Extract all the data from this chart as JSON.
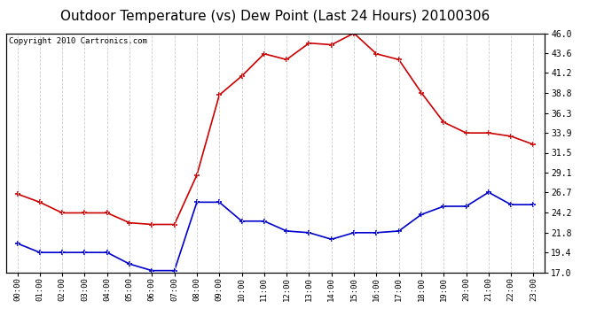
{
  "title": "Outdoor Temperature (vs) Dew Point (Last 24 Hours) 20100306",
  "copyright": "Copyright 2010 Cartronics.com",
  "hours": [
    "00:00",
    "01:00",
    "02:00",
    "03:00",
    "04:00",
    "05:00",
    "06:00",
    "07:00",
    "08:00",
    "09:00",
    "10:00",
    "11:00",
    "12:00",
    "13:00",
    "14:00",
    "15:00",
    "16:00",
    "17:00",
    "18:00",
    "19:00",
    "20:00",
    "21:00",
    "22:00",
    "23:00"
  ],
  "temp": [
    26.5,
    25.5,
    24.2,
    24.2,
    24.2,
    23.0,
    22.8,
    22.8,
    28.8,
    38.5,
    40.8,
    43.5,
    42.8,
    44.8,
    44.6,
    46.0,
    43.5,
    42.8,
    38.8,
    35.2,
    33.9,
    33.9,
    33.5,
    32.5
  ],
  "dewpoint": [
    20.5,
    19.4,
    19.4,
    19.4,
    19.4,
    18.0,
    17.2,
    17.2,
    25.5,
    25.5,
    23.2,
    23.2,
    22.0,
    21.8,
    21.0,
    21.8,
    21.8,
    22.0,
    24.0,
    25.0,
    25.0,
    26.7,
    25.2,
    25.2
  ],
  "temp_color": "#cc0000",
  "dewpoint_color": "#0000cc",
  "bg_color": "#ffffff",
  "grid_color": "#cccccc",
  "plot_bg_color": "#ffffff",
  "yticks_right": [
    17.0,
    19.4,
    21.8,
    24.2,
    26.7,
    29.1,
    31.5,
    33.9,
    36.3,
    38.8,
    41.2,
    43.6,
    46.0
  ],
  "ylim": [
    17.0,
    46.0
  ],
  "title_fontsize": 11,
  "copyright_fontsize": 6.5,
  "marker": "+",
  "marker_size": 5,
  "line_width": 1.2
}
